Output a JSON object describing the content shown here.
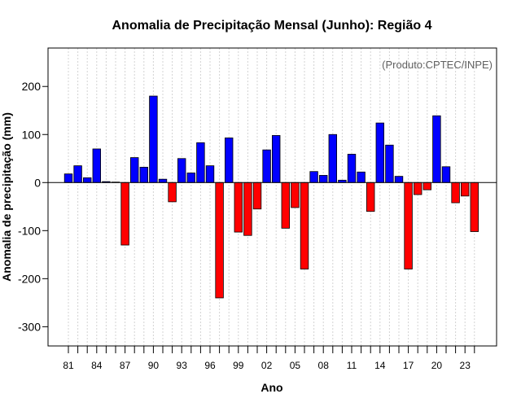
{
  "chart_data": {
    "type": "bar",
    "title": "Anomalia de Precipitação Mensal (Junho): Região 4",
    "xlabel": "Ano",
    "ylabel": "Anomalia de precipitação (mm)",
    "annotation": "(Produto:CPTEC/INPE)",
    "ylim": [
      -340,
      280
    ],
    "yticks": [
      -300,
      -200,
      -100,
      0,
      100,
      200
    ],
    "grid": true,
    "categories": [
      "1981",
      "1982",
      "1983",
      "1984",
      "1985",
      "1986",
      "1987",
      "1988",
      "1989",
      "1990",
      "1991",
      "1992",
      "1993",
      "1994",
      "1995",
      "1996",
      "1997",
      "1998",
      "1999",
      "2000",
      "2001",
      "2002",
      "2003",
      "2004",
      "2005",
      "2006",
      "2007",
      "2008",
      "2009",
      "2010",
      "2011",
      "2012",
      "2013",
      "2014",
      "2015",
      "2016",
      "2017",
      "2018",
      "2019",
      "2020",
      "2021",
      "2022",
      "2023",
      "2024"
    ],
    "values": [
      18,
      35,
      10,
      70,
      2,
      1,
      -130,
      52,
      32,
      180,
      7,
      -40,
      50,
      20,
      83,
      35,
      -240,
      93,
      -103,
      -110,
      -55,
      68,
      98,
      -95,
      -52,
      -180,
      23,
      15,
      100,
      5,
      59,
      22,
      -60,
      124,
      78,
      13,
      -180,
      -25,
      -15,
      139,
      33,
      -42,
      -28,
      -102
    ],
    "xtick_labels": [
      {
        "index": 0,
        "label": "81"
      },
      {
        "index": 3,
        "label": "84"
      },
      {
        "index": 6,
        "label": "87"
      },
      {
        "index": 9,
        "label": "90"
      },
      {
        "index": 12,
        "label": "93"
      },
      {
        "index": 15,
        "label": "96"
      },
      {
        "index": 18,
        "label": "99"
      },
      {
        "index": 21,
        "label": "02"
      },
      {
        "index": 24,
        "label": "05"
      },
      {
        "index": 27,
        "label": "08"
      },
      {
        "index": 30,
        "label": "11"
      },
      {
        "index": 33,
        "label": "14"
      },
      {
        "index": 36,
        "label": "17"
      },
      {
        "index": 39,
        "label": "20"
      },
      {
        "index": 42,
        "label": "23"
      }
    ],
    "colors": {
      "positive": "#0000ff",
      "negative": "#ff0000",
      "grid": "#d3d3d3",
      "baseline": "#000000"
    }
  }
}
